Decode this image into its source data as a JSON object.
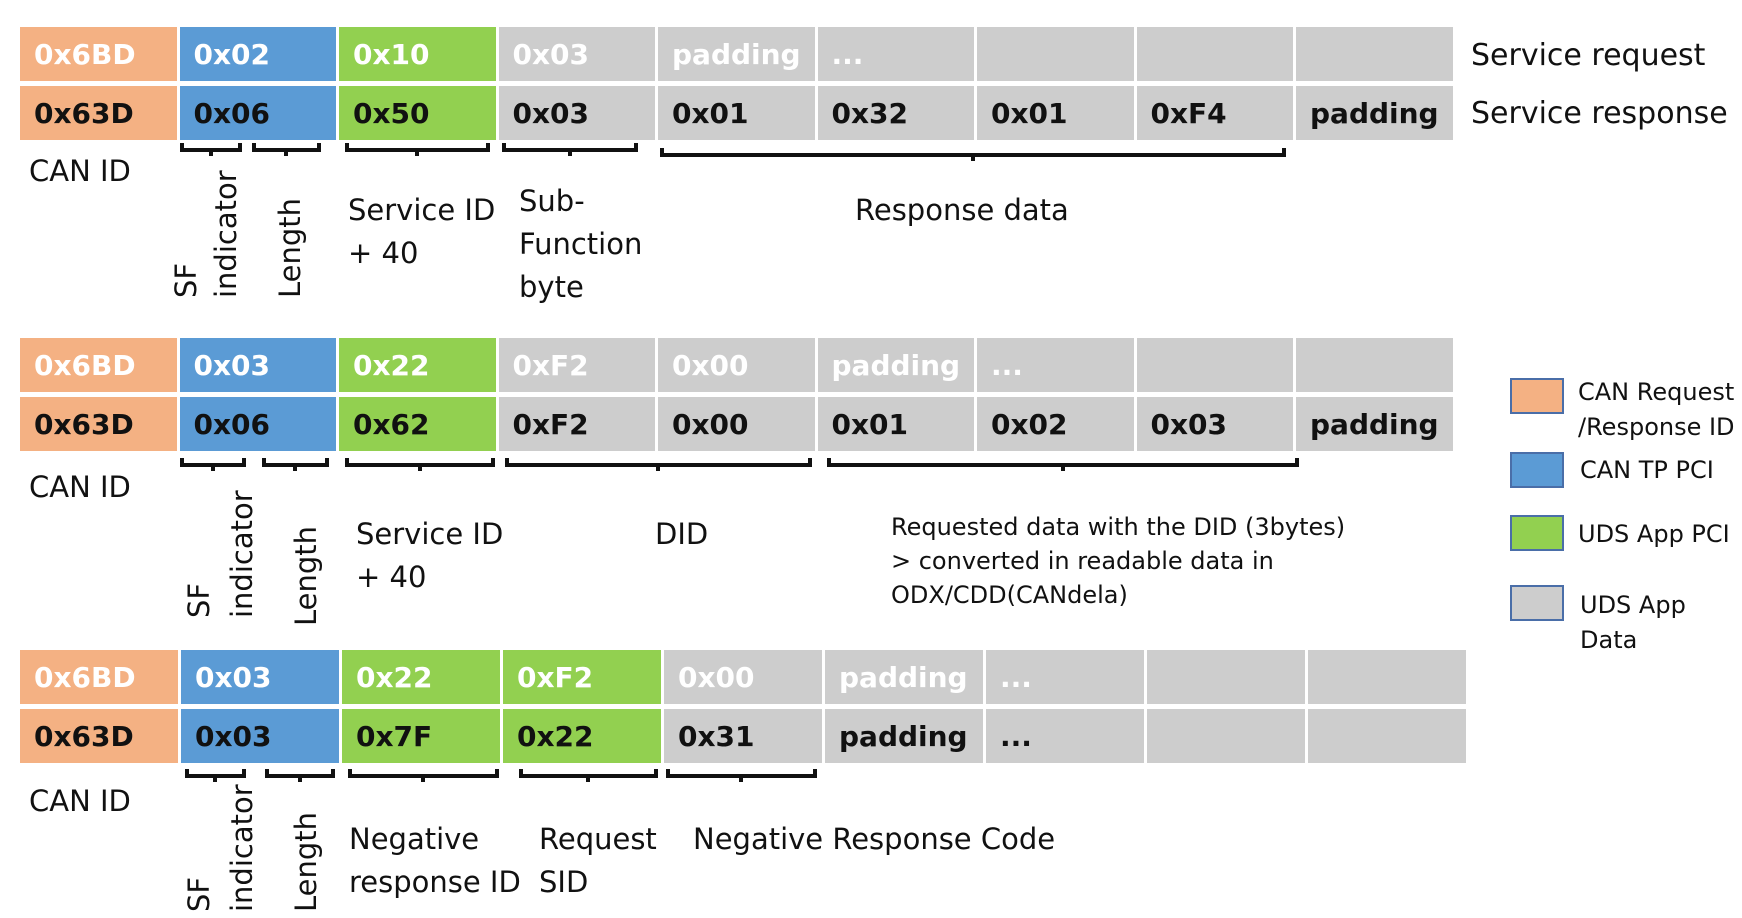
{
  "colors": {
    "can_id": "#f4b183",
    "tp_pci": "#5b9bd5",
    "app_pci": "#92d050",
    "app_data": "#cdcdcd"
  },
  "blocks": [
    {
      "request": [
        {
          "text": "0x6BD",
          "type": "can_id"
        },
        {
          "text": "0x02",
          "type": "tp_pci"
        },
        {
          "text": "0x10",
          "type": "app_pci"
        },
        {
          "text": "0x03",
          "type": "app_data"
        },
        {
          "text": "padding",
          "type": "app_data"
        },
        {
          "text": "...",
          "type": "app_data"
        },
        {
          "text": "",
          "type": "app_data"
        },
        {
          "text": "",
          "type": "app_data"
        },
        {
          "text": "",
          "type": "app_data"
        }
      ],
      "response": [
        {
          "text": "0x63D",
          "type": "can_id"
        },
        {
          "text": "0x06",
          "type": "tp_pci"
        },
        {
          "text": "0x50",
          "type": "app_pci"
        },
        {
          "text": "0x03",
          "type": "app_data"
        },
        {
          "text": "0x01",
          "type": "app_data"
        },
        {
          "text": "0x32",
          "type": "app_data"
        },
        {
          "text": "0x01",
          "type": "app_data"
        },
        {
          "text": "0xF4",
          "type": "app_data"
        },
        {
          "text": "padding",
          "type": "app_data"
        }
      ],
      "label_can_id": "CAN ID",
      "label_sf": "SF",
      "label_indicator": "indicator",
      "label_length": "Length",
      "annotations": [
        "Service ID\n+ 40",
        "Sub-\nFunction\nbyte",
        "Response data"
      ]
    },
    {
      "request": [
        {
          "text": "0x6BD",
          "type": "can_id"
        },
        {
          "text": "0x03",
          "type": "tp_pci"
        },
        {
          "text": "0x22",
          "type": "app_pci"
        },
        {
          "text": "0xF2",
          "type": "app_data"
        },
        {
          "text": "0x00",
          "type": "app_data"
        },
        {
          "text": "padding",
          "type": "app_data"
        },
        {
          "text": "...",
          "type": "app_data"
        },
        {
          "text": "",
          "type": "app_data"
        },
        {
          "text": "",
          "type": "app_data"
        }
      ],
      "response": [
        {
          "text": "0x63D",
          "type": "can_id"
        },
        {
          "text": "0x06",
          "type": "tp_pci"
        },
        {
          "text": "0x62",
          "type": "app_pci"
        },
        {
          "text": "0xF2",
          "type": "app_data"
        },
        {
          "text": "0x00",
          "type": "app_data"
        },
        {
          "text": "0x01",
          "type": "app_data"
        },
        {
          "text": "0x02",
          "type": "app_data"
        },
        {
          "text": "0x03",
          "type": "app_data"
        },
        {
          "text": "padding",
          "type": "app_data"
        }
      ],
      "label_can_id": "CAN ID",
      "label_sf": "SF",
      "label_indicator": "indicator",
      "label_length": "Length",
      "annotations": [
        "Service ID\n+ 40",
        "DID",
        "Requested data with the DID (3bytes)\n> converted in readable data in\nODX/CDD(CANdela)"
      ]
    },
    {
      "request": [
        {
          "text": "0x6BD",
          "type": "can_id"
        },
        {
          "text": "0x03",
          "type": "tp_pci"
        },
        {
          "text": "0x22",
          "type": "app_pci"
        },
        {
          "text": "0xF2",
          "type": "app_pci"
        },
        {
          "text": "0x00",
          "type": "app_data"
        },
        {
          "text": "padding",
          "type": "app_data"
        },
        {
          "text": "...",
          "type": "app_data"
        },
        {
          "text": "",
          "type": "app_data"
        },
        {
          "text": "",
          "type": "app_data"
        }
      ],
      "response": [
        {
          "text": "0x63D",
          "type": "can_id"
        },
        {
          "text": "0x03",
          "type": "tp_pci"
        },
        {
          "text": "0x7F",
          "type": "app_pci"
        },
        {
          "text": "0x22",
          "type": "app_pci"
        },
        {
          "text": "0x31",
          "type": "app_data"
        },
        {
          "text": "padding",
          "type": "app_data"
        },
        {
          "text": "...",
          "type": "app_data"
        },
        {
          "text": "",
          "type": "app_data"
        },
        {
          "text": "",
          "type": "app_data"
        }
      ],
      "label_can_id": "CAN ID",
      "label_sf": "SF",
      "label_indicator": "indicator",
      "label_length": "Length",
      "annotations": [
        "Negative\nresponse ID",
        "Request\nSID",
        "Negative Response Code"
      ]
    }
  ],
  "row_labels": {
    "request": "Service request",
    "response": "Service response"
  },
  "legend": [
    {
      "text": "CAN Request\n/Response ID",
      "type": "can_id"
    },
    {
      "text": "CAN TP PCI",
      "type": "tp_pci"
    },
    {
      "text": "UDS App PCI",
      "type": "app_pci"
    },
    {
      "text": "UDS App Data",
      "type": "app_data"
    }
  ]
}
